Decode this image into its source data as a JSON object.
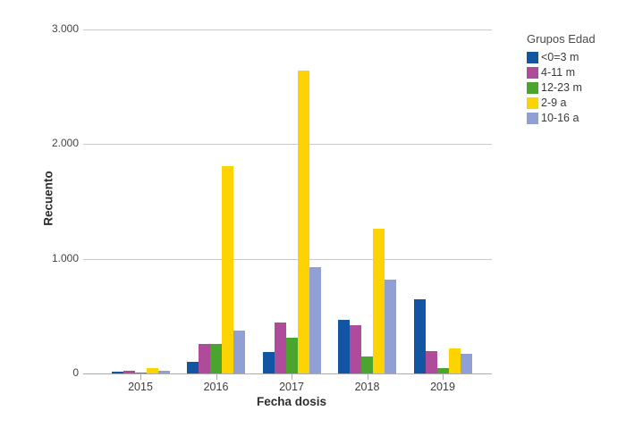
{
  "chart_data": {
    "type": "bar",
    "title": "",
    "xlabel": "Fecha dosis",
    "ylabel": "Recuento",
    "categories": [
      "2015",
      "2016",
      "2017",
      "2018",
      "2019"
    ],
    "series": [
      {
        "name": "<0=3 m",
        "color": "#1155A3",
        "values": [
          15,
          105,
          190,
          470,
          645
        ]
      },
      {
        "name": "4-11 m",
        "color": "#AE4B9B",
        "values": [
          25,
          260,
          445,
          420,
          195
        ]
      },
      {
        "name": "12-23 m",
        "color": "#49A52D",
        "values": [
          10,
          255,
          310,
          150,
          50
        ]
      },
      {
        "name": "2-9 a",
        "color": "#FDD303",
        "values": [
          45,
          1805,
          2640,
          1260,
          220
        ]
      },
      {
        "name": "10-16 a",
        "color": "#909FD4",
        "values": [
          20,
          375,
          930,
          815,
          175
        ]
      }
    ],
    "ylim": [
      0,
      3000
    ],
    "yticks": [
      {
        "value": 0,
        "label": "0"
      },
      {
        "value": 1000,
        "label": "1.000"
      },
      {
        "value": 2000,
        "label": "2.000"
      },
      {
        "value": 3000,
        "label": "3.000"
      }
    ],
    "grid": true,
    "legend": {
      "title": "Grupos Edad",
      "position": "right"
    }
  },
  "colors": {
    "gridline": "#C9C9C9",
    "axis_line": "#ABABAB",
    "bar_blue": "#1155A3",
    "bar_magenta": "#AE4B9B",
    "bar_green": "#49A52D",
    "bar_yellow": "#FDD303",
    "bar_periwinkle": "#909FD4"
  }
}
